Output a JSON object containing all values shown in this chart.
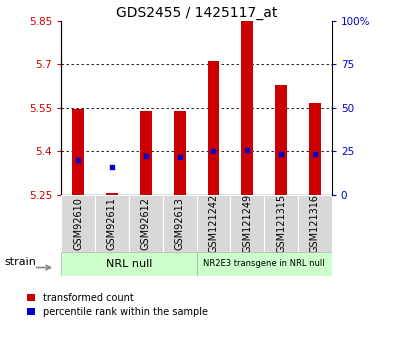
{
  "title": "GDS2455 / 1425117_at",
  "samples": [
    "GSM92610",
    "GSM92611",
    "GSM92612",
    "GSM92613",
    "GSM121242",
    "GSM121249",
    "GSM121315",
    "GSM121316"
  ],
  "bar_values": [
    5.545,
    5.258,
    5.54,
    5.538,
    5.71,
    5.855,
    5.63,
    5.565
  ],
  "bar_base": 5.25,
  "blue_dot_values": [
    5.37,
    5.345,
    5.385,
    5.38,
    5.4,
    5.405,
    5.39,
    5.39
  ],
  "ylim": [
    5.25,
    5.85
  ],
  "y_ticks": [
    5.25,
    5.4,
    5.55,
    5.7,
    5.85
  ],
  "y_tick_labels": [
    "5.25",
    "5.4",
    "5.55",
    "5.7",
    "5.85"
  ],
  "right_yticks": [
    0,
    25,
    50,
    75,
    100
  ],
  "right_ytick_labels": [
    "0",
    "25",
    "50",
    "75",
    "100%"
  ],
  "bar_color": "#cc0000",
  "dot_color": "#0000cc",
  "left_tick_color": "#cc0000",
  "right_tick_color": "#0000cc",
  "group1_label": "NRL null",
  "group2_label": "NR2E3 transgene in NRL null",
  "group_bg_color": "#ccffcc",
  "xlabel_strain": "strain",
  "legend_red": "transformed count",
  "legend_blue": "percentile rank within the sample",
  "bar_width": 0.35,
  "title_fontsize": 10,
  "tick_fontsize": 7.5,
  "xtick_fontsize": 7,
  "label_fontsize": 8,
  "group_label_fontsize": 8
}
